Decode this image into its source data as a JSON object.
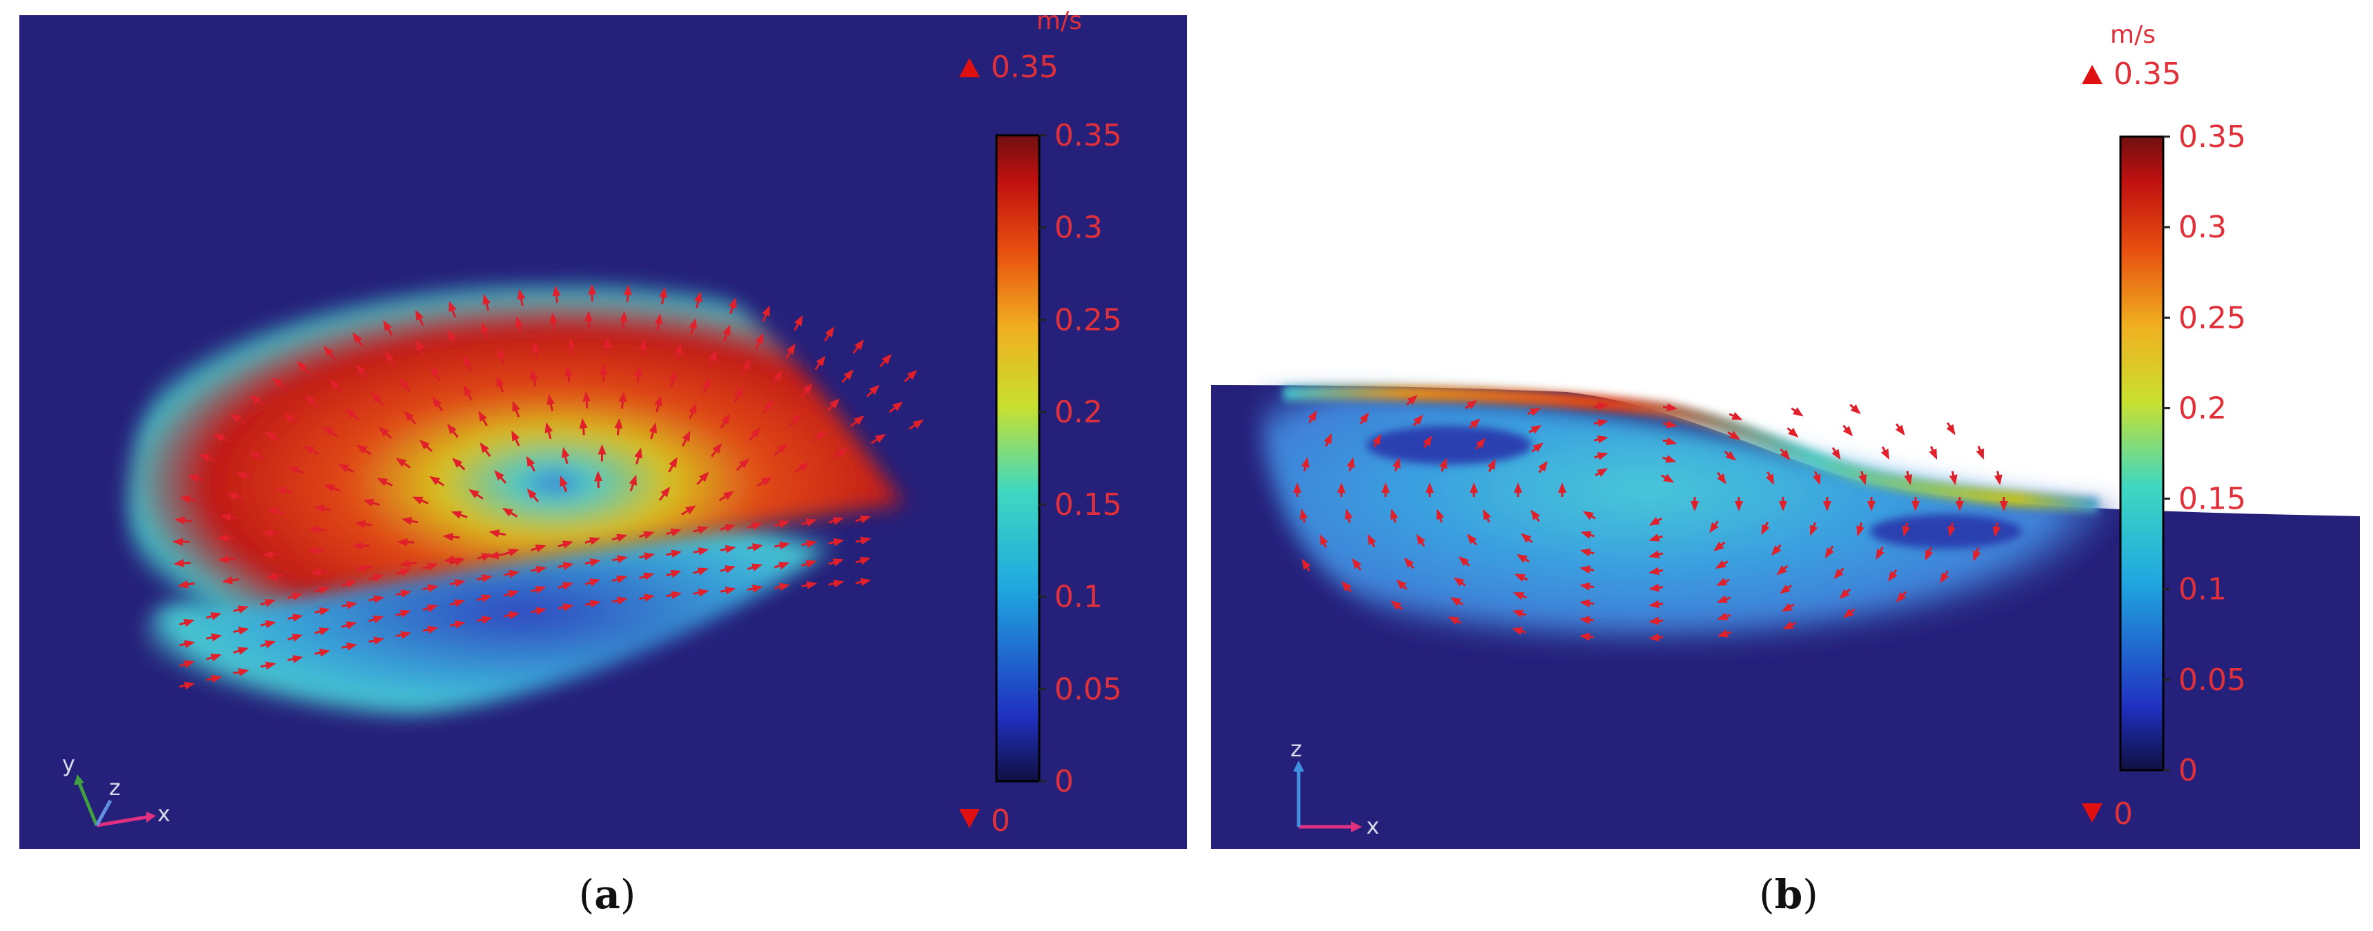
{
  "chart_data": [
    {
      "type": "heatmap",
      "panel_label": "a",
      "description_kind": "velocity field with arrows",
      "unit": "m/s",
      "color_range": [
        0,
        0.35
      ],
      "max_marker": "0.35",
      "min_marker": "0",
      "colorbar_ticks": [
        "0.35",
        "0.3",
        "0.25",
        "0.2",
        "0.15",
        "0.1",
        "0.05",
        "0"
      ],
      "colorbar_tick_values": [
        0.35,
        0.3,
        0.25,
        0.2,
        0.15,
        0.1,
        0.05,
        0
      ],
      "axes_triad": [
        "y",
        "z",
        "x"
      ],
      "colors": {
        "background": "#25207a",
        "arrow": "#e0202a",
        "text": "#e0303a"
      }
    },
    {
      "type": "heatmap",
      "panel_label": "b",
      "unit": "m/s",
      "color_range": [
        0,
        0.35
      ],
      "max_marker": "0.35",
      "min_marker": "0",
      "colorbar_ticks": [
        "0.35",
        "0.3",
        "0.25",
        "0.2",
        "0.15",
        "0.1",
        "0.05",
        "0"
      ],
      "colorbar_tick_values": [
        0.35,
        0.3,
        0.25,
        0.2,
        0.15,
        0.1,
        0.05,
        0
      ],
      "axes_triad": [
        "z",
        "x"
      ],
      "colors": {
        "background": "#25207a",
        "arrow": "#e0202a",
        "text": "#e0303a"
      }
    }
  ],
  "captions": {
    "a": "a",
    "b": "b"
  }
}
